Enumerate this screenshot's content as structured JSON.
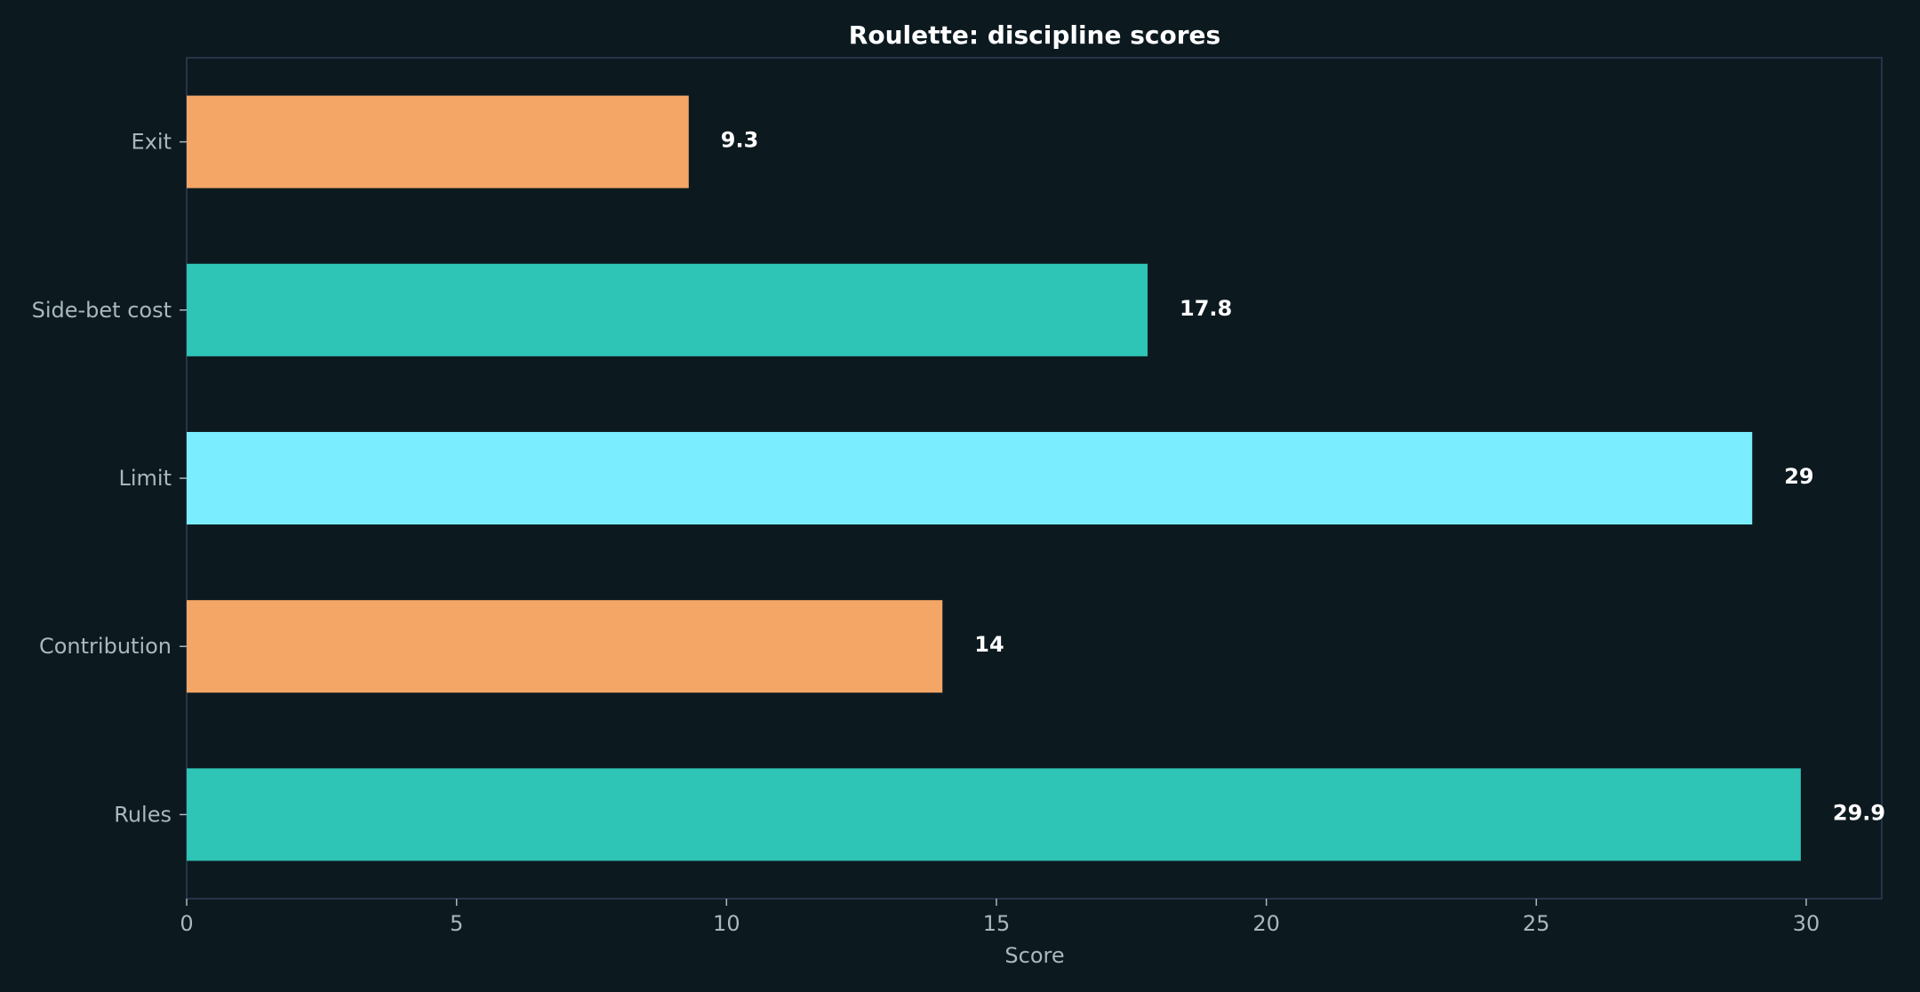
{
  "chart_data": {
    "type": "bar",
    "orientation": "horizontal",
    "title": "Roulette: discipline scores",
    "xlabel": "Score",
    "ylabel": "",
    "xlim": [
      0,
      31.4
    ],
    "xticks": [
      0,
      5,
      10,
      15,
      20,
      25,
      30
    ],
    "grid": false,
    "categories": [
      "Exit",
      "Side-bet cost",
      "Limit",
      "Contribution",
      "Rules"
    ],
    "values": [
      9.3,
      17.8,
      29,
      14,
      29.9
    ],
    "value_labels": [
      "9.3",
      "17.8",
      "29",
      "14",
      "29.9"
    ],
    "colors": [
      "#f4a667",
      "#2ec4b6",
      "#7aeeff",
      "#f4a667",
      "#2ec4b6"
    ]
  }
}
